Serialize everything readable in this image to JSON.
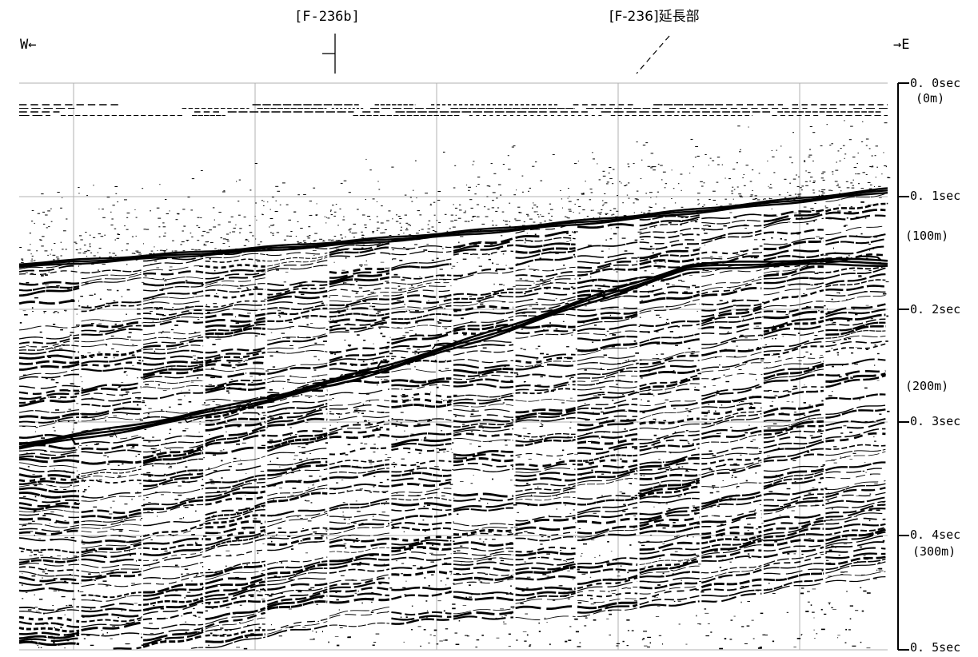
{
  "header": {
    "west_label": "W←",
    "east_label": "→E",
    "marker_a_label": "[F-236b]",
    "marker_b_label": "[F-236]延長部"
  },
  "time_axis": {
    "ticks": [
      {
        "label": "0. 0sec",
        "depth": "(0m)"
      },
      {
        "label": "0. 1sec",
        "depth": "(100m)"
      },
      {
        "label": "0. 2sec",
        "depth": ""
      },
      {
        "label": "0. 3sec",
        "depth": "(200m)"
      },
      {
        "label": "0. 4sec",
        "depth": "(300m)"
      },
      {
        "label": "0. 5sec",
        "depth": ""
      }
    ]
  },
  "colors": {
    "background": "#ffffff",
    "ink": "#000000",
    "grid": "#b0b0b0"
  }
}
